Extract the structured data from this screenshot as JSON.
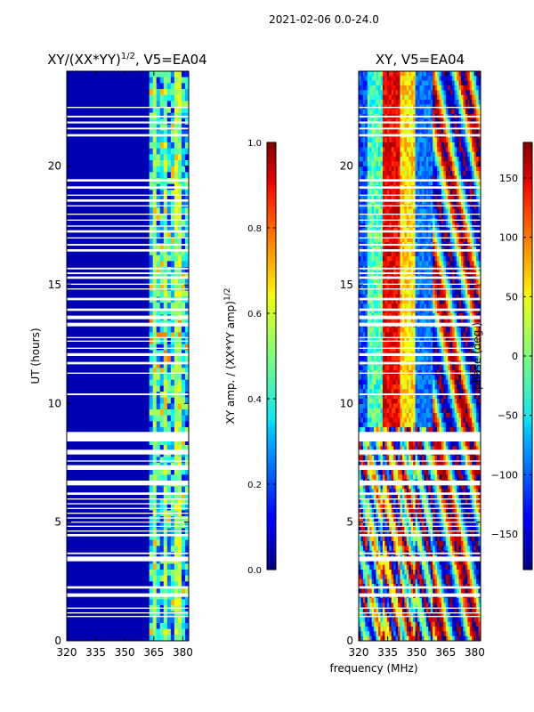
{
  "figure": {
    "suptitle": "2021-02-06 0.0-24.0",
    "shared_xlabel": "frequency (MHz)"
  },
  "chart_data": [
    {
      "type": "heatmap",
      "title": "XY/(XX*YY)^{1/2}, V5=EA04",
      "title_main": "XY/(XX*YY)",
      "title_sup": "1/2",
      "title_tail": ", V5=EA04",
      "xlabel": "",
      "ylabel": "UT (hours)",
      "xlim": [
        320,
        383
      ],
      "ylim": [
        0,
        24
      ],
      "xticks": [
        320,
        335,
        350,
        365,
        380
      ],
      "yticks": [
        0,
        5,
        10,
        15,
        20
      ],
      "colorbar": {
        "label": "XY amp. / (XX*YY amp)^{1/2}",
        "label_main": "XY amp. / (XX*YY amp)",
        "label_sup": "1/2",
        "range": [
          0.0,
          1.0
        ],
        "ticks": [
          0.0,
          0.2,
          0.4,
          0.6,
          0.8,
          1.0
        ],
        "tick_labels": [
          "0.0",
          "0.2",
          "0.4",
          "0.6",
          "0.8",
          "1.0"
        ],
        "colormap": "jet"
      }
    },
    {
      "type": "heatmap",
      "title": "XY, V5=EA04",
      "xlabel": "",
      "ylabel": "",
      "xlim": [
        320,
        383
      ],
      "ylim": [
        0,
        24
      ],
      "xticks": [
        320,
        335,
        350,
        365,
        380
      ],
      "yticks": [
        0,
        5,
        10,
        15,
        20
      ],
      "colorbar": {
        "label": "phase (deg.)",
        "range": [
          -180,
          180
        ],
        "ticks": [
          -150,
          -100,
          -50,
          0,
          50,
          100,
          150
        ],
        "tick_labels": [
          "−150",
          "−100",
          "−50",
          "0",
          "50",
          "100",
          "150"
        ],
        "colormap": "jet"
      }
    }
  ],
  "data_gaps_ut_hours": [
    [
      1.0,
      1.05
    ],
    [
      1.15,
      1.2
    ],
    [
      1.35,
      1.4
    ],
    [
      1.85,
      2.0
    ],
    [
      2.2,
      2.3
    ],
    [
      3.35,
      3.55
    ],
    [
      3.65,
      3.72
    ],
    [
      4.4,
      4.5
    ],
    [
      4.6,
      4.65
    ],
    [
      4.8,
      4.85
    ],
    [
      4.98,
      5.02
    ],
    [
      5.15,
      5.2
    ],
    [
      5.35,
      5.4
    ],
    [
      5.55,
      5.6
    ],
    [
      5.75,
      5.8
    ],
    [
      5.95,
      6.0
    ],
    [
      6.15,
      6.25
    ],
    [
      6.55,
      6.75
    ],
    [
      7.2,
      7.4
    ],
    [
      7.55,
      7.6
    ],
    [
      7.85,
      8.05
    ],
    [
      8.4,
      8.8
    ],
    [
      10.35,
      10.42
    ],
    [
      11.25,
      11.3
    ],
    [
      11.65,
      11.75
    ],
    [
      12.0,
      12.12
    ],
    [
      12.3,
      12.35
    ],
    [
      12.6,
      12.65
    ],
    [
      12.75,
      12.8
    ],
    [
      13.25,
      13.4
    ],
    [
      13.55,
      13.7
    ],
    [
      13.9,
      14.0
    ],
    [
      14.35,
      14.45
    ],
    [
      14.8,
      14.85
    ],
    [
      15.0,
      15.05
    ],
    [
      15.25,
      15.35
    ],
    [
      15.45,
      15.52
    ],
    [
      15.65,
      15.72
    ],
    [
      16.4,
      16.5
    ],
    [
      16.65,
      16.72
    ],
    [
      16.95,
      17.0
    ],
    [
      17.2,
      17.3
    ],
    [
      17.45,
      17.5
    ],
    [
      17.7,
      17.75
    ],
    [
      17.95,
      18.0
    ],
    [
      18.3,
      18.35
    ],
    [
      18.5,
      18.6
    ],
    [
      18.75,
      18.8
    ],
    [
      19.05,
      19.15
    ],
    [
      19.35,
      19.45
    ],
    [
      21.25,
      21.35
    ],
    [
      21.55,
      21.62
    ],
    [
      21.8,
      21.88
    ],
    [
      22.05,
      22.12
    ],
    [
      22.45,
      22.5
    ]
  ]
}
